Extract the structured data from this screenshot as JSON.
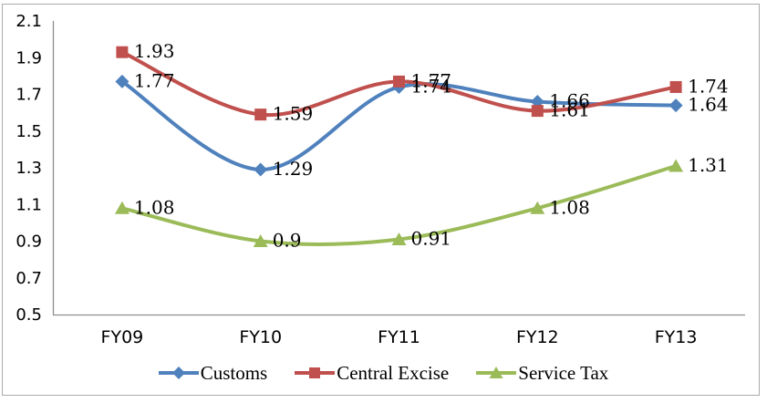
{
  "chart_data": {
    "type": "line",
    "smoothed": true,
    "title": "",
    "categories": [
      "FY09",
      "FY10",
      "FY11",
      "FY12",
      "FY13"
    ],
    "series": [
      {
        "name": "Customs",
        "marker": "diamond",
        "color": "#4F81BD",
        "values": [
          1.77,
          1.29,
          1.74,
          1.66,
          1.64
        ],
        "point_labels": [
          "1.77",
          "1.29",
          "1.74",
          "1.66",
          "1.64"
        ]
      },
      {
        "name": "Central Excise",
        "marker": "square",
        "color": "#C0504D",
        "values": [
          1.93,
          1.59,
          1.77,
          1.61,
          1.74
        ],
        "point_labels": [
          "1.93",
          "1.59",
          "1.77",
          "1.61",
          "1.74"
        ]
      },
      {
        "name": "Service Tax",
        "marker": "triangle",
        "color": "#9BBB59",
        "values": [
          1.08,
          0.9,
          0.91,
          1.08,
          1.31
        ],
        "point_labels": [
          "1.08",
          "0.9",
          "0.91",
          "1.08",
          "1.31"
        ]
      }
    ],
    "y_axis": {
      "min": 0.5,
      "max": 2.1,
      "tick_step": 0.2,
      "tick_labels": [
        "2.1",
        "1.9",
        "1.7",
        "1.5",
        "1.3",
        "1.1",
        "0.9",
        "0.7",
        "0.5"
      ]
    },
    "grid": false,
    "legend_position": "bottom",
    "axis_color": "#8E8E8E",
    "text_color": "#000000",
    "border_color": "#ABABAB",
    "background": "#FFFFFF"
  }
}
